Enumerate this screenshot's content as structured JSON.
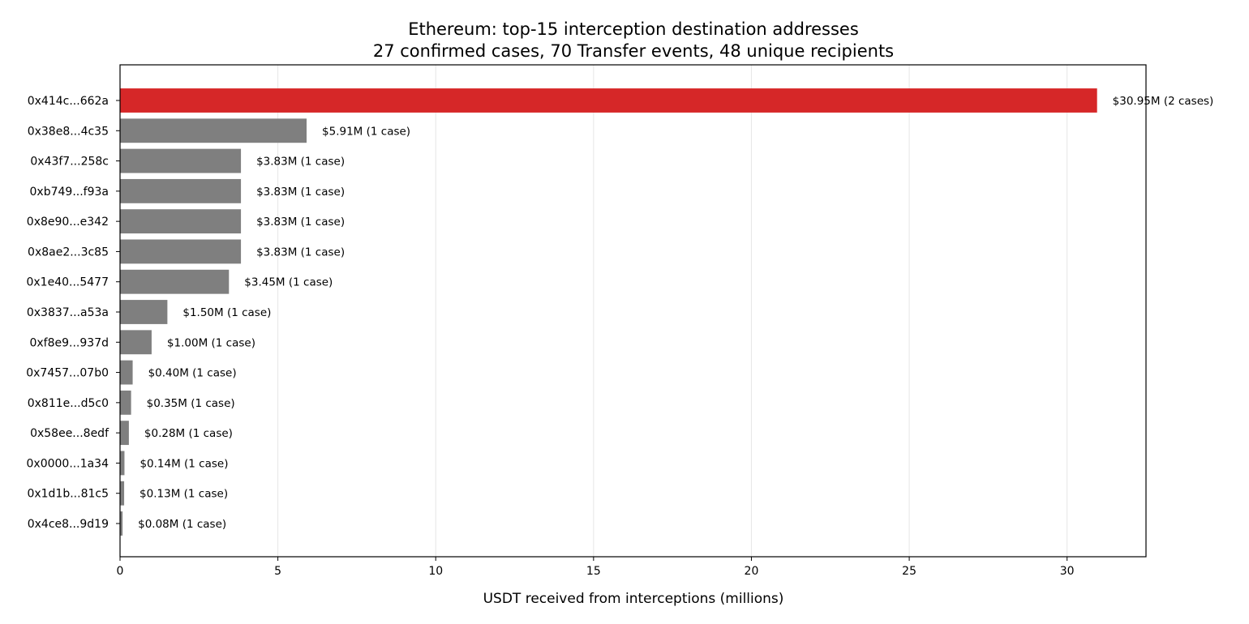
{
  "chart_data": {
    "type": "bar",
    "orientation": "horizontal",
    "title": "Ethereum: top-15 interception destination addresses",
    "subtitle": "27 confirmed cases, 70 Transfer events, 48 unique recipients",
    "xlabel": "USDT received from interceptions (millions)",
    "ylabel": "",
    "xlim": [
      0,
      32.5
    ],
    "xticks": [
      0,
      5,
      10,
      15,
      20,
      25,
      30
    ],
    "grid": "x",
    "legend": "none",
    "colors": {
      "highlight": "#d62728",
      "default": "#7f7f7f",
      "grid": "#e6e6e6"
    },
    "categories": [
      "0x414c...662a",
      "0x38e8...4c35",
      "0x43f7...258c",
      "0xb749...f93a",
      "0x8e90...e342",
      "0x8ae2...3c85",
      "0x1e40...5477",
      "0x3837...a53a",
      "0xf8e9...937d",
      "0x7457...07b0",
      "0x811e...d5c0",
      "0x58ee...8edf",
      "0x0000...1a34",
      "0x1d1b...81c5",
      "0x4ce8...9d19"
    ],
    "values": [
      30.95,
      5.91,
      3.83,
      3.83,
      3.83,
      3.83,
      3.45,
      1.5,
      1.0,
      0.4,
      0.35,
      0.28,
      0.14,
      0.13,
      0.08
    ],
    "data_labels": [
      "$30.95M (2 cases)",
      "$5.91M (1 case)",
      "$3.83M (1 case)",
      "$3.83M (1 case)",
      "$3.83M (1 case)",
      "$3.83M (1 case)",
      "$3.45M (1 case)",
      "$1.50M (1 case)",
      "$1.00M (1 case)",
      "$0.40M (1 case)",
      "$0.35M (1 case)",
      "$0.28M (1 case)",
      "$0.14M (1 case)",
      "$0.13M (1 case)",
      "$0.08M (1 case)"
    ],
    "highlight_index": 0
  }
}
